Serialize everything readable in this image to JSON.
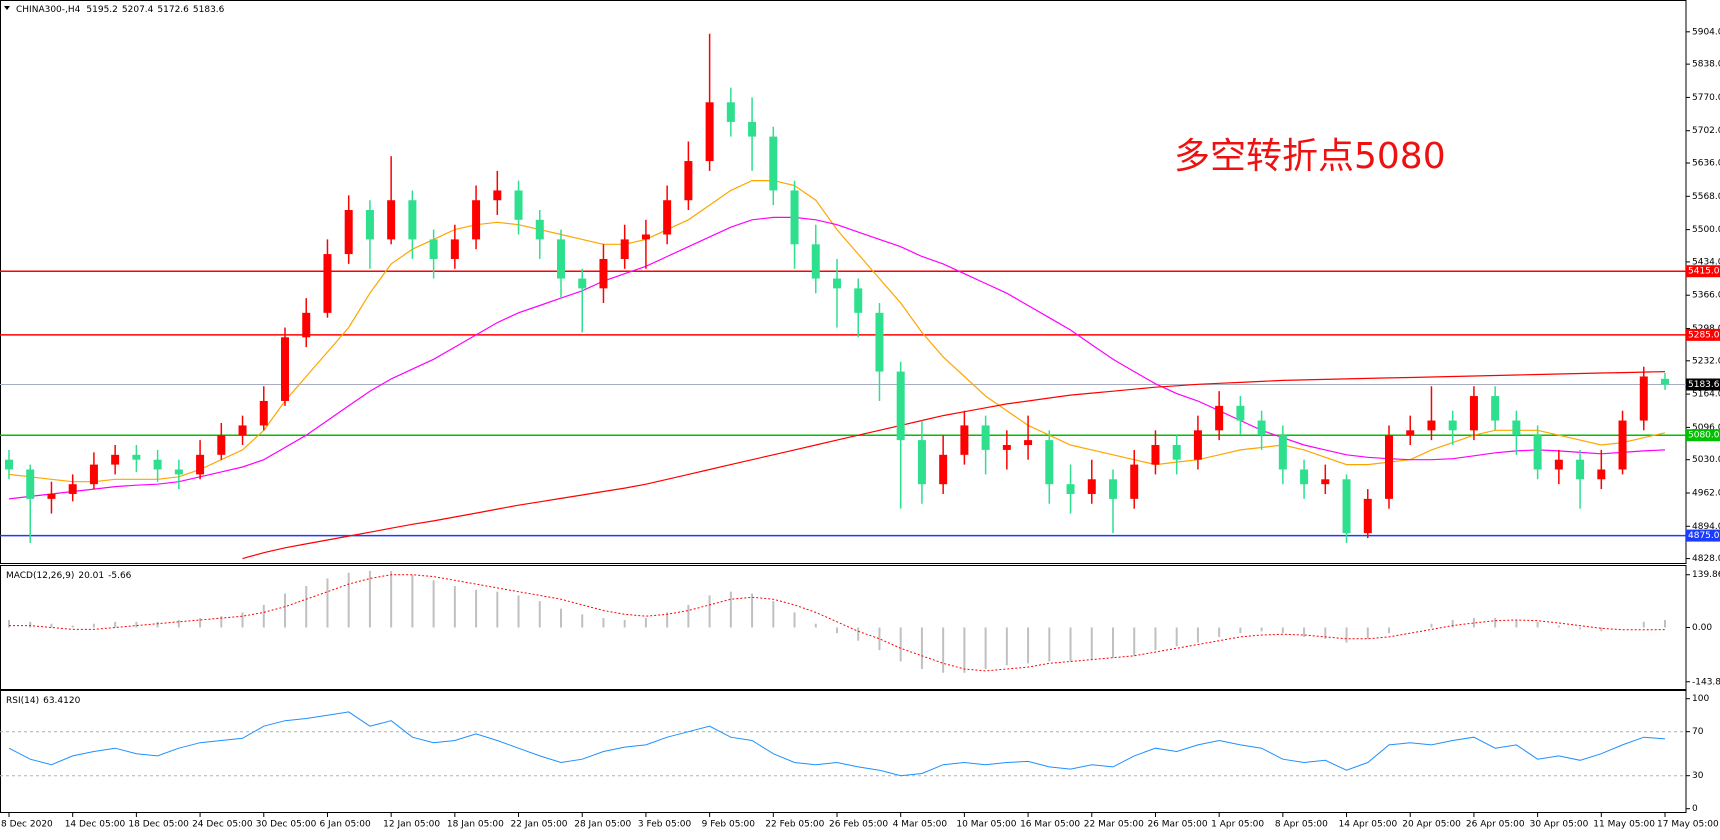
{
  "chart_data": [
    {
      "type": "candlestick",
      "title": "CHINA300-,H4",
      "categories": [
        "8 Dec 2020",
        null,
        null,
        "14 Dec 05:00",
        null,
        null,
        "18 Dec 05:00",
        null,
        null,
        "24 Dec 05:00",
        null,
        null,
        "30 Dec 05:00",
        null,
        null,
        "6 Jan 05:00",
        null,
        null,
        "12 Jan 05:00",
        null,
        null,
        "18 Jan 05:00",
        null,
        null,
        "22 Jan 05:00",
        null,
        null,
        "28 Jan 05:00",
        null,
        null,
        "3 Feb 05:00",
        null,
        null,
        "9 Feb 05:00",
        null,
        null,
        "22 Feb 05:00",
        null,
        null,
        "26 Feb 05:00",
        null,
        null,
        "4 Mar 05:00",
        null,
        null,
        "10 Mar 05:00",
        null,
        null,
        "16 Mar 05:00",
        null,
        null,
        "22 Mar 05:00",
        null,
        null,
        "26 Mar 05:00",
        null,
        null,
        "1 Apr 05:00",
        null,
        null,
        "8 Apr 05:00",
        null,
        null,
        "14 Apr 05:00",
        null,
        null,
        "20 Apr 05:00",
        null,
        null,
        "26 Apr 05:00",
        null,
        null,
        "30 Apr 05:00",
        null,
        null,
        "11 May 05:00",
        null,
        null,
        "17 May 05:00"
      ],
      "candles": [
        [
          5030,
          5050,
          4990,
          5010
        ],
        [
          5010,
          5020,
          4860,
          4950
        ],
        [
          4950,
          4985,
          4920,
          4960
        ],
        [
          4960,
          5000,
          4945,
          4980
        ],
        [
          4980,
          5045,
          4970,
          5020
        ],
        [
          5020,
          5060,
          5000,
          5040
        ],
        [
          5040,
          5060,
          5005,
          5030
        ],
        [
          5030,
          5050,
          4985,
          5010
        ],
        [
          5010,
          5030,
          4970,
          5000
        ],
        [
          5000,
          5070,
          4990,
          5040
        ],
        [
          5040,
          5105,
          5030,
          5080
        ],
        [
          5080,
          5120,
          5060,
          5100
        ],
        [
          5100,
          5180,
          5090,
          5150
        ],
        [
          5150,
          5300,
          5140,
          5280
        ],
        [
          5280,
          5360,
          5260,
          5330
        ],
        [
          5330,
          5480,
          5320,
          5450
        ],
        [
          5450,
          5570,
          5430,
          5540
        ],
        [
          5540,
          5560,
          5420,
          5480
        ],
        [
          5480,
          5650,
          5470,
          5560
        ],
        [
          5560,
          5580,
          5440,
          5480
        ],
        [
          5480,
          5500,
          5400,
          5440
        ],
        [
          5440,
          5510,
          5420,
          5480
        ],
        [
          5480,
          5590,
          5460,
          5560
        ],
        [
          5560,
          5620,
          5530,
          5580
        ],
        [
          5580,
          5600,
          5490,
          5520
        ],
        [
          5520,
          5540,
          5440,
          5480
        ],
        [
          5480,
          5500,
          5360,
          5400
        ],
        [
          5400,
          5420,
          5290,
          5380
        ],
        [
          5380,
          5470,
          5350,
          5440
        ],
        [
          5440,
          5510,
          5420,
          5480
        ],
        [
          5480,
          5520,
          5420,
          5490
        ],
        [
          5490,
          5590,
          5470,
          5560
        ],
        [
          5560,
          5680,
          5540,
          5640
        ],
        [
          5640,
          5900,
          5620,
          5760
        ],
        [
          5760,
          5790,
          5690,
          5720
        ],
        [
          5720,
          5770,
          5620,
          5690
        ],
        [
          5690,
          5710,
          5550,
          5580
        ],
        [
          5580,
          5600,
          5420,
          5470
        ],
        [
          5470,
          5510,
          5370,
          5400
        ],
        [
          5400,
          5440,
          5300,
          5380
        ],
        [
          5380,
          5400,
          5280,
          5330
        ],
        [
          5330,
          5350,
          5150,
          5210
        ],
        [
          5210,
          5230,
          4930,
          5070
        ],
        [
          5070,
          5110,
          4940,
          4980
        ],
        [
          4980,
          5080,
          4960,
          5040
        ],
        [
          5040,
          5130,
          5020,
          5100
        ],
        [
          5100,
          5120,
          5000,
          5050
        ],
        [
          5050,
          5090,
          5010,
          5060
        ],
        [
          5060,
          5120,
          5030,
          5070
        ],
        [
          5070,
          5090,
          4940,
          4980
        ],
        [
          4980,
          5020,
          4920,
          4960
        ],
        [
          4960,
          5030,
          4940,
          4990
        ],
        [
          4990,
          5010,
          4880,
          4950
        ],
        [
          4950,
          5050,
          4930,
          5020
        ],
        [
          5020,
          5090,
          5000,
          5060
        ],
        [
          5060,
          5080,
          5000,
          5030
        ],
        [
          5030,
          5120,
          5010,
          5090
        ],
        [
          5090,
          5170,
          5070,
          5140
        ],
        [
          5140,
          5160,
          5080,
          5110
        ],
        [
          5110,
          5130,
          5050,
          5080
        ],
        [
          5080,
          5100,
          4980,
          5010
        ],
        [
          5010,
          5030,
          4950,
          4980
        ],
        [
          4980,
          5020,
          4960,
          4990
        ],
        [
          4990,
          5000,
          4860,
          4880
        ],
        [
          4880,
          4970,
          4870,
          4950
        ],
        [
          4950,
          5100,
          4930,
          5080
        ],
        [
          5080,
          5120,
          5060,
          5090
        ],
        [
          5090,
          5180,
          5070,
          5110
        ],
        [
          5110,
          5130,
          5060,
          5090
        ],
        [
          5090,
          5180,
          5070,
          5160
        ],
        [
          5160,
          5180,
          5090,
          5110
        ],
        [
          5110,
          5130,
          5040,
          5080
        ],
        [
          5080,
          5100,
          4990,
          5010
        ],
        [
          5010,
          5050,
          4980,
          5030
        ],
        [
          5030,
          5050,
          4930,
          4990
        ],
        [
          4990,
          5050,
          4970,
          5010
        ],
        [
          5010,
          5130,
          5000,
          5110
        ],
        [
          5110,
          5220,
          5090,
          5200
        ],
        [
          5195.2,
          5207.4,
          5172.6,
          5183.6
        ]
      ],
      "up_color": "#ff0000",
      "down_color": "#2ee08e",
      "moving_averages": [
        {
          "color": "#ffa500",
          "values": [
            5000,
            4995,
            4990,
            4985,
            4985,
            4990,
            4990,
            4990,
            4995,
            5010,
            5030,
            5050,
            5090,
            5150,
            5200,
            5250,
            5300,
            5370,
            5430,
            5460,
            5480,
            5500,
            5510,
            5515,
            5510,
            5500,
            5490,
            5480,
            5470,
            5470,
            5480,
            5500,
            5520,
            5550,
            5580,
            5600,
            5600,
            5590,
            5560,
            5500,
            5450,
            5400,
            5350,
            5290,
            5240,
            5200,
            5160,
            5130,
            5100,
            5080,
            5060,
            5050,
            5040,
            5030,
            5020,
            5025,
            5030,
            5040,
            5050,
            5055,
            5060,
            5050,
            5035,
            5020,
            5020,
            5025,
            5030,
            5050,
            5065,
            5080,
            5090,
            5090,
            5090,
            5080,
            5070,
            5060,
            5065,
            5075,
            5085
          ]
        },
        {
          "color": "#ff00ff",
          "values": [
            4950,
            4955,
            4960,
            4965,
            4970,
            4975,
            4978,
            4980,
            4985,
            4995,
            5005,
            5015,
            5030,
            5055,
            5080,
            5110,
            5140,
            5170,
            5195,
            5215,
            5235,
            5260,
            5285,
            5310,
            5330,
            5345,
            5360,
            5375,
            5395,
            5410,
            5425,
            5445,
            5465,
            5485,
            5505,
            5520,
            5525,
            5525,
            5520,
            5510,
            5495,
            5480,
            5465,
            5445,
            5430,
            5410,
            5390,
            5370,
            5345,
            5320,
            5295,
            5265,
            5235,
            5210,
            5185,
            5165,
            5150,
            5130,
            5110,
            5090,
            5075,
            5060,
            5050,
            5040,
            5035,
            5032,
            5030,
            5030,
            5032,
            5038,
            5044,
            5048,
            5050,
            5048,
            5045,
            5042,
            5045,
            5048,
            5050
          ]
        },
        {
          "color": "#ff0000",
          "values": [
            null,
            null,
            null,
            null,
            null,
            null,
            null,
            null,
            null,
            null,
            null,
            4828,
            4840,
            4850,
            4858,
            4866,
            4874,
            4882,
            4890,
            4898,
            4905,
            4913,
            4921,
            4929,
            4937,
            4944,
            4951,
            4958,
            4965,
            4972,
            4980,
            4990,
            5000,
            5010,
            5020,
            5030,
            5040,
            5050,
            5060,
            5070,
            5080,
            5090,
            5100,
            5110,
            5120,
            5128,
            5136,
            5144,
            5150,
            5156,
            5162,
            5166,
            5170,
            5174,
            5178,
            5181,
            5184,
            5186,
            5188,
            5190,
            5192,
            5193,
            5194,
            5195,
            5196,
            5197,
            5198,
            5199,
            5200,
            5201,
            5202,
            5203,
            5204,
            5205,
            5206,
            5207,
            5208,
            5209,
            5210
          ]
        }
      ],
      "levels": [
        {
          "value": 5415,
          "label": "5415.0",
          "color": "#ff0000"
        },
        {
          "value": 5285,
          "label": "5285.0",
          "color": "#ff0000"
        },
        {
          "value": 5080,
          "label": "5080.0",
          "color": "#00c000"
        },
        {
          "value": 4875,
          "label": "4875.0",
          "color": "#1a3cff"
        }
      ],
      "current_price_color": "#a8acc0",
      "annotation": "多空转折点5080",
      "annotation_color": "#ee1111",
      "ylim": [
        4819,
        5969
      ],
      "yticks": [
        {
          "value": 4828,
          "label": "4828.0"
        },
        {
          "value": 4894,
          "label": "4894.0"
        },
        {
          "value": 4962,
          "label": "4962.0"
        },
        {
          "value": 5030,
          "label": "5030.0"
        },
        {
          "value": 5096,
          "label": "5096.0"
        },
        {
          "value": 5164,
          "label": "5164.0"
        },
        {
          "value": 5232,
          "label": "5232.0"
        },
        {
          "value": 5298,
          "label": "5298.0"
        },
        {
          "value": 5366,
          "label": "5366.0"
        },
        {
          "value": 5434,
          "label": "5434.0"
        },
        {
          "value": 5500,
          "label": "5500.0"
        },
        {
          "value": 5568,
          "label": "5568.0"
        },
        {
          "value": 5636,
          "label": "5636.0"
        },
        {
          "value": 5702,
          "label": "5702.0"
        },
        {
          "value": 5770,
          "label": "5770.0"
        },
        {
          "value": 5838,
          "label": "5838.0"
        },
        {
          "value": 5904,
          "label": "5904.0"
        }
      ]
    },
    {
      "type": "macd",
      "title": "MACD(12,26,9)",
      "histogram": {
        "color": "#c0c0c0",
        "values": [
          20,
          15,
          10,
          5,
          10,
          15,
          15,
          15,
          20,
          25,
          30,
          40,
          60,
          90,
          110,
          130,
          145,
          150,
          150,
          140,
          125,
          110,
          100,
          95,
          85,
          70,
          50,
          35,
          25,
          20,
          25,
          40,
          60,
          85,
          95,
          90,
          70,
          40,
          10,
          -15,
          -35,
          -60,
          -90,
          -110,
          -120,
          -120,
          -110,
          -100,
          -95,
          -90,
          -90,
          -85,
          -80,
          -75,
          -60,
          -50,
          -40,
          -25,
          -15,
          -10,
          -15,
          -25,
          -30,
          -40,
          -30,
          -15,
          0,
          10,
          20,
          25,
          25,
          20,
          15,
          5,
          -5,
          -10,
          0,
          15,
          20.01
        ]
      },
      "signal": {
        "color": "#ff0000",
        "values": [
          5,
          5,
          0,
          -5,
          -5,
          0,
          5,
          10,
          15,
          20,
          25,
          30,
          40,
          55,
          75,
          95,
          115,
          130,
          140,
          140,
          135,
          125,
          115,
          105,
          95,
          85,
          75,
          60,
          45,
          35,
          30,
          35,
          45,
          60,
          75,
          80,
          75,
          60,
          40,
          15,
          -10,
          -30,
          -55,
          -75,
          -95,
          -110,
          -115,
          -110,
          -105,
          -95,
          -90,
          -85,
          -80,
          -75,
          -65,
          -55,
          -45,
          -35,
          -25,
          -20,
          -18,
          -20,
          -25,
          -30,
          -30,
          -25,
          -15,
          -5,
          5,
          12,
          18,
          20,
          18,
          12,
          5,
          -2,
          -6,
          -6,
          -5.66
        ]
      },
      "ylim": [
        -163,
        163
      ],
      "yticks": [
        139.86,
        {
          "value": 0,
          "label": "0.00"
        },
        -143.82
      ]
    },
    {
      "type": "line",
      "title": "RSI(14)",
      "current_label": "63.4120",
      "color": "#1e90ff",
      "values": [
        55,
        45,
        40,
        48,
        52,
        55,
        50,
        48,
        55,
        60,
        62,
        64,
        75,
        80,
        82,
        85,
        88,
        75,
        80,
        65,
        60,
        62,
        68,
        62,
        55,
        48,
        42,
        45,
        52,
        56,
        58,
        65,
        70,
        75,
        65,
        62,
        50,
        42,
        40,
        42,
        38,
        35,
        30,
        32,
        40,
        42,
        40,
        42,
        43,
        38,
        36,
        40,
        38,
        48,
        55,
        52,
        58,
        62,
        58,
        55,
        45,
        42,
        44,
        35,
        42,
        58,
        60,
        58,
        62,
        65,
        55,
        58,
        45,
        48,
        44,
        50,
        58,
        65,
        63.412
      ],
      "levels": [
        70,
        30
      ],
      "ylim": [
        -3,
        107
      ],
      "yticks": [
        100,
        70,
        30,
        0
      ]
    }
  ]
}
